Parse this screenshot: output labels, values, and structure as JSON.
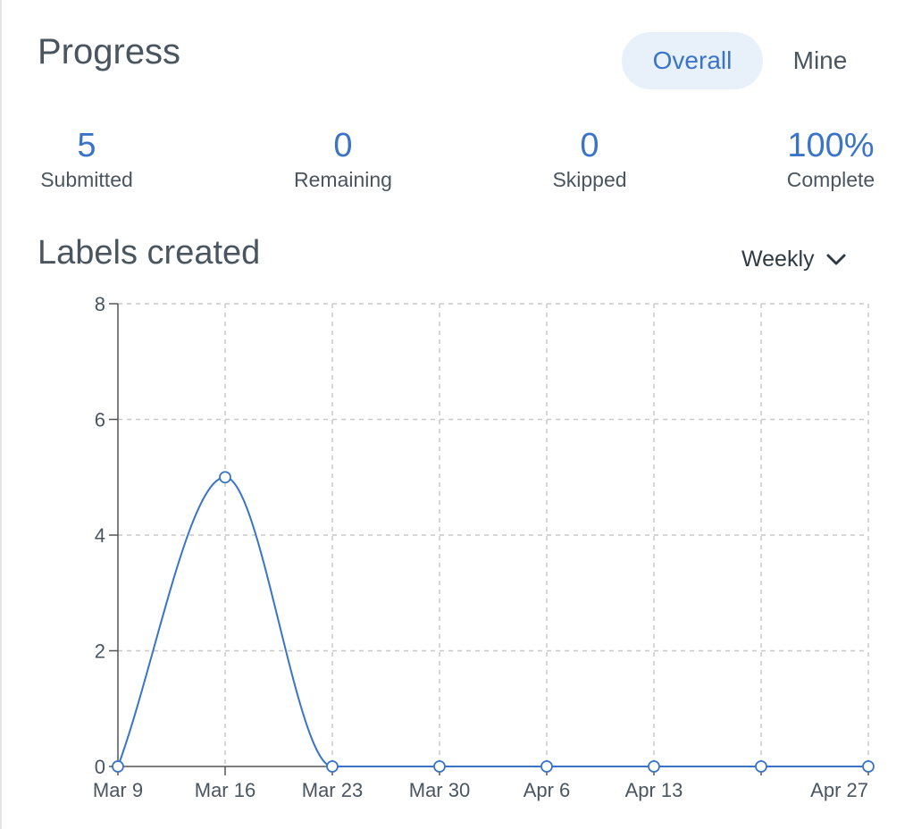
{
  "header": {
    "title": "Progress",
    "tabs": [
      {
        "label": "Overall",
        "active": true
      },
      {
        "label": "Mine",
        "active": false
      }
    ]
  },
  "stats": [
    {
      "value": "5",
      "label": "Submitted"
    },
    {
      "value": "0",
      "label": "Remaining"
    },
    {
      "value": "0",
      "label": "Skipped"
    },
    {
      "value": "100%",
      "label": "Complete"
    }
  ],
  "chart_section": {
    "title": "Labels created",
    "interval": "Weekly",
    "dropdown_icon": "chevron-down-icon"
  },
  "colors": {
    "accent": "#3a74c9",
    "active_tab_bg": "#e8f0fa",
    "text": "#4a5560",
    "grid": "#c8c8c8"
  },
  "chart_data": {
    "type": "line",
    "x": [
      "2025-03-09",
      "2025-03-16",
      "2025-03-23",
      "2025-03-30",
      "2025-04-06",
      "2025-04-13",
      "2025-04-20",
      "2025-04-27"
    ],
    "series": [
      {
        "values": [
          0,
          5,
          0,
          0,
          0,
          0,
          0,
          0
        ]
      }
    ],
    "x_tick_labels": [
      "Mar 9",
      "Mar 16",
      "Mar 23",
      "Mar 30",
      "Apr 6",
      "Apr 13",
      "",
      "Apr 27"
    ],
    "y_ticks": [
      0,
      2,
      4,
      6,
      8
    ],
    "ylim": [
      0,
      8
    ],
    "grid": true,
    "curve": "smooth"
  }
}
